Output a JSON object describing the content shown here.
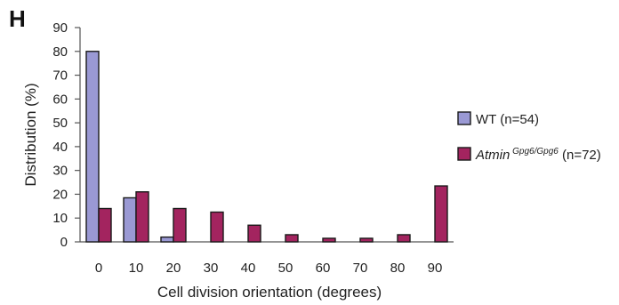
{
  "panel_label": "H",
  "chart_data": {
    "type": "bar",
    "title": "",
    "xlabel": "Cell division orientation (degrees)",
    "ylabel": "Distribution (%)",
    "ylim": [
      0,
      90
    ],
    "yticks": [
      0,
      10,
      20,
      30,
      40,
      50,
      60,
      70,
      80,
      90
    ],
    "categories": [
      "0",
      "10",
      "20",
      "30",
      "40",
      "50",
      "60",
      "70",
      "80",
      "90"
    ],
    "grid": false,
    "legend_position": "right",
    "series": [
      {
        "name": "WT (n=54)",
        "legend_main": "WT",
        "legend_sup": "",
        "legend_suffix": " (n=54)",
        "color": "#9a99d4",
        "values": [
          80,
          18.5,
          2,
          0,
          0,
          0,
          0,
          0,
          0,
          0
        ]
      },
      {
        "name": "AtminGpg6/Gpg6 (n=72)",
        "legend_main": "Atmin",
        "legend_sup": "Gpg6/Gpg6",
        "legend_suffix": " (n=72)",
        "color": "#a3245f",
        "values": [
          14,
          21,
          14,
          12.5,
          7,
          3,
          1.5,
          1.5,
          3,
          23.5
        ]
      }
    ]
  }
}
